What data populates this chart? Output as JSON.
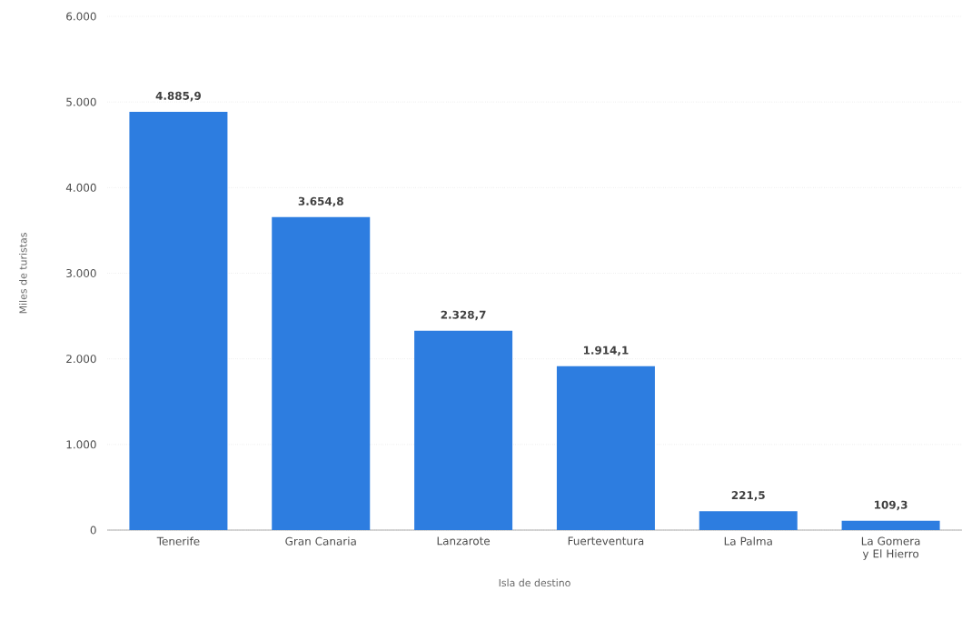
{
  "chart_data": {
    "type": "bar",
    "xlabel": "Isla de destino",
    "ylabel": "Miles de turistas",
    "categories": [
      "Tenerife",
      "Gran Canaria",
      "Lanzarote",
      "Fuerteventura",
      "La Palma",
      "La Gomera y El Hierro"
    ],
    "values": [
      4885.9,
      3654.8,
      2328.7,
      1914.1,
      221.5,
      109.3
    ],
    "value_labels": [
      "4.885,9",
      "3.654,8",
      "2.328,7",
      "1.914,1",
      "221,5",
      "109,3"
    ],
    "color": "#2d7de0",
    "ylim": [
      0,
      6000
    ],
    "yticks": [
      {
        "value": 0,
        "label": "0"
      },
      {
        "value": 1000,
        "label": "1.000"
      },
      {
        "value": 2000,
        "label": "2.000"
      },
      {
        "value": 3000,
        "label": "3.000"
      },
      {
        "value": 4000,
        "label": "4.000"
      },
      {
        "value": 5000,
        "label": "5.000"
      },
      {
        "value": 6000,
        "label": "6.000"
      }
    ],
    "grid": "y"
  }
}
